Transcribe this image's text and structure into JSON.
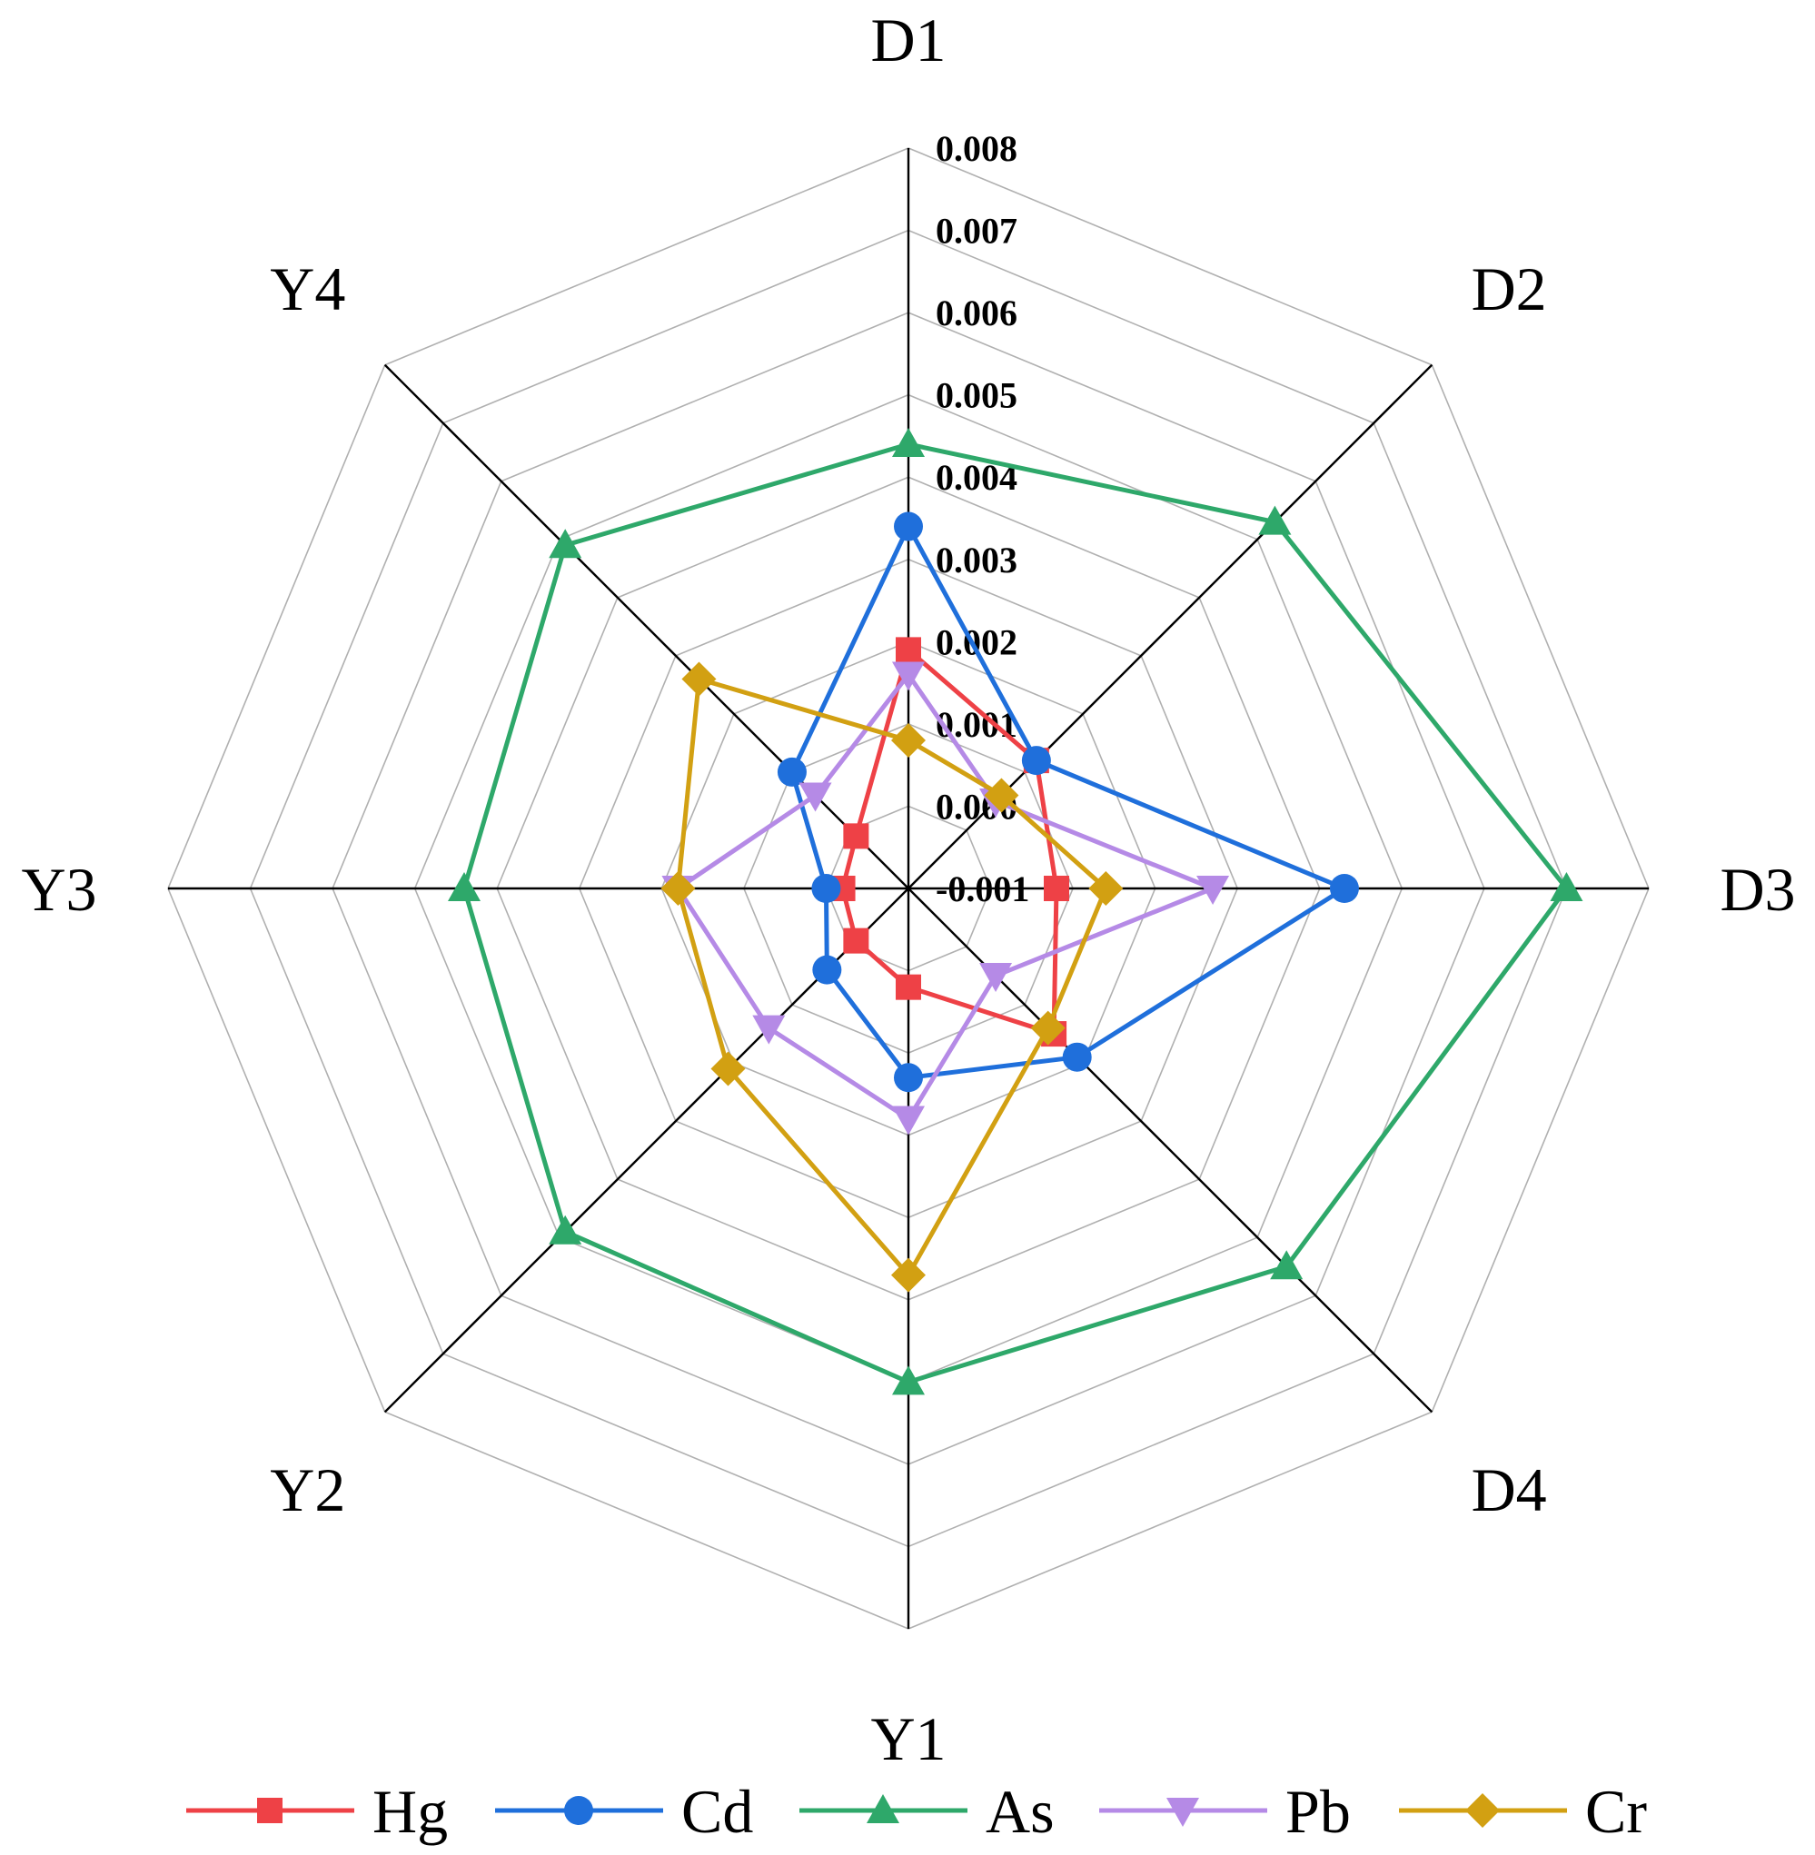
{
  "chart_data": {
    "type": "radar",
    "title": "",
    "categories": [
      "D1",
      "D2",
      "D3",
      "D4",
      "Y1",
      "Y2",
      "Y3",
      "Y4"
    ],
    "range": [
      -0.001,
      0.008
    ],
    "ticks": [
      "-0.001",
      "0.000",
      "0.001",
      "0.002",
      "0.003",
      "0.004",
      "0.005",
      "0.006",
      "0.007",
      "0.008"
    ],
    "tick_values": [
      -0.001,
      0.0,
      0.001,
      0.002,
      0.003,
      0.004,
      0.005,
      0.006,
      0.007,
      0.008
    ],
    "legend_position": "bottom",
    "series": [
      {
        "name": "Hg",
        "color": "#ee4146",
        "marker": "square",
        "values": [
          0.0019,
          0.0012,
          0.0008,
          0.0015,
          0.0002,
          -0.0001,
          -0.0002,
          -0.0001
        ]
      },
      {
        "name": "Cd",
        "color": "#1f6fdb",
        "marker": "circle",
        "values": [
          0.0034,
          0.0012,
          0.0043,
          0.0019,
          0.0013,
          0.0004,
          0.0,
          0.001
        ]
      },
      {
        "name": "As",
        "color": "#2ea86a",
        "marker": "triangle-up",
        "values": [
          0.0044,
          0.0053,
          0.007,
          0.0055,
          0.005,
          0.0049,
          0.0044,
          0.0049
        ]
      },
      {
        "name": "Pb",
        "color": "#b58ae6",
        "marker": "triangle-down",
        "values": [
          0.0016,
          0.0005,
          0.0027,
          0.0005,
          0.0018,
          0.0014,
          0.0018,
          0.0006
        ]
      },
      {
        "name": "Cr",
        "color": "#d2a012",
        "marker": "diamond",
        "values": [
          0.0008,
          0.0006,
          0.0014,
          0.0014,
          0.0037,
          0.0021,
          0.0018,
          0.0026
        ]
      }
    ]
  }
}
